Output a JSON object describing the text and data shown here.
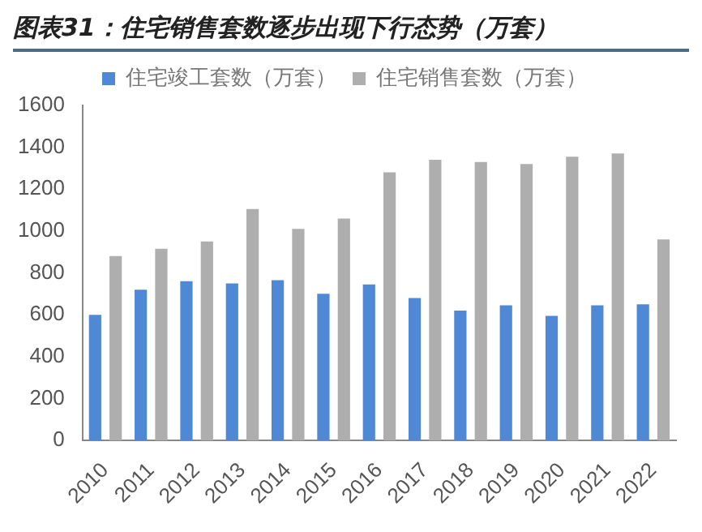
{
  "chart_data": {
    "type": "bar",
    "title": "图表31：住宅销售套数逐步出现下行态势（万套）",
    "categories": [
      "2010",
      "2011",
      "2012",
      "2013",
      "2014",
      "2015",
      "2016",
      "2017",
      "2018",
      "2019",
      "2020",
      "2021",
      "2022"
    ],
    "series": [
      {
        "name": "住宅竣工套数（万套）",
        "color": "#4f88d4",
        "values": [
          600,
          720,
          760,
          750,
          765,
          700,
          745,
          680,
          620,
          645,
          595,
          645,
          650
        ]
      },
      {
        "name": "住宅销售套数（万套）",
        "color": "#aeaeae",
        "values": [
          880,
          915,
          950,
          1105,
          1010,
          1060,
          1280,
          1340,
          1330,
          1320,
          1355,
          1370,
          960
        ]
      }
    ],
    "ylim": [
      0,
      1600
    ],
    "yticks": [
      0,
      200,
      400,
      600,
      800,
      1000,
      1200,
      1400,
      1600
    ],
    "grid": false,
    "legend": "top"
  }
}
